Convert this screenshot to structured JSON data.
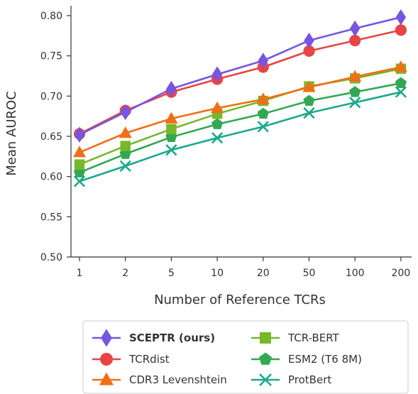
{
  "chart_data": {
    "type": "line",
    "xlabel": "Number of Reference TCRs",
    "ylabel": "Mean AUROC",
    "categories": [
      "1",
      "2",
      "5",
      "10",
      "20",
      "50",
      "100",
      "200"
    ],
    "yticks": [
      "0.50",
      "0.55",
      "0.60",
      "0.65",
      "0.70",
      "0.75",
      "0.80"
    ],
    "ylim": [
      0.5,
      0.81
    ],
    "grid": false,
    "legend_position": "bottom",
    "series": [
      {
        "name": "SCEPTR (ours)",
        "color": "#7755e0",
        "marker": "diamond",
        "bold": true,
        "values": [
          0.652,
          0.68,
          0.709,
          0.727,
          0.744,
          0.769,
          0.784,
          0.798
        ]
      },
      {
        "name": "TCRdist",
        "color": "#e84444",
        "marker": "circle",
        "bold": false,
        "values": [
          0.653,
          0.682,
          0.705,
          0.721,
          0.736,
          0.756,
          0.769,
          0.782
        ]
      },
      {
        "name": "CDR3 Levenshtein",
        "color": "#f06e16",
        "marker": "triangle",
        "bold": false,
        "values": [
          0.63,
          0.654,
          0.672,
          0.685,
          0.696,
          0.711,
          0.724,
          0.736
        ]
      },
      {
        "name": "TCR-BERT",
        "color": "#76b82a",
        "marker": "square",
        "bold": false,
        "values": [
          0.615,
          0.638,
          0.659,
          0.678,
          0.694,
          0.712,
          0.722,
          0.734
        ]
      },
      {
        "name": "ESM2 (T6 8M)",
        "color": "#33a853",
        "marker": "pentagon",
        "bold": false,
        "values": [
          0.605,
          0.628,
          0.649,
          0.665,
          0.678,
          0.694,
          0.705,
          0.716
        ]
      },
      {
        "name": "ProtBert",
        "color": "#1aa98a",
        "marker": "x",
        "bold": false,
        "values": [
          0.594,
          0.613,
          0.633,
          0.648,
          0.662,
          0.679,
          0.692,
          0.705
        ]
      }
    ]
  }
}
